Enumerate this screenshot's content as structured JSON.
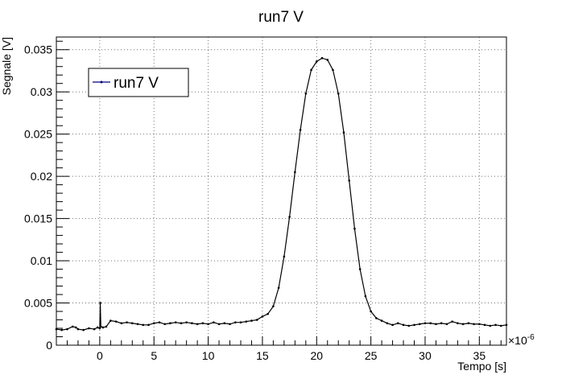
{
  "chart_data": {
    "type": "line",
    "title": "run7 V",
    "xlabel": "Tempo [s]",
    "ylabel": "Segnale [V]",
    "x_exponent_label": "×10",
    "x_exponent_power": "-6",
    "xlim": [
      -4.0,
      37.5
    ],
    "ylim": [
      0,
      0.0365
    ],
    "x_ticks": [
      {
        "value": 0,
        "label": "0"
      },
      {
        "value": 5,
        "label": "5"
      },
      {
        "value": 10,
        "label": "10"
      },
      {
        "value": 15,
        "label": "15"
      },
      {
        "value": 20,
        "label": "20"
      },
      {
        "value": 25,
        "label": "25"
      },
      {
        "value": 30,
        "label": "30"
      },
      {
        "value": 35,
        "label": "35"
      }
    ],
    "y_ticks": [
      {
        "value": 0,
        "label": "0"
      },
      {
        "value": 0.005,
        "label": "0.005"
      },
      {
        "value": 0.01,
        "label": "0.01"
      },
      {
        "value": 0.015,
        "label": "0.015"
      },
      {
        "value": 0.02,
        "label": "0.02"
      },
      {
        "value": 0.025,
        "label": "0.025"
      },
      {
        "value": 0.03,
        "label": "0.03"
      },
      {
        "value": 0.035,
        "label": "0.035"
      }
    ],
    "grid": true,
    "legend_position": "top-left",
    "series": [
      {
        "name": "run7 V",
        "color": "#000080",
        "x": [
          -4.0,
          -3.5,
          -3.0,
          -2.5,
          -2.2,
          -2.0,
          -1.5,
          -1.0,
          -0.5,
          -0.2,
          0.0,
          0.05,
          0.1,
          0.3,
          0.6,
          1.0,
          1.5,
          2.0,
          2.5,
          3.0,
          3.5,
          4.0,
          4.5,
          5.0,
          5.5,
          6.0,
          6.5,
          7.0,
          7.5,
          8.0,
          8.5,
          9.0,
          9.5,
          10.0,
          10.5,
          11.0,
          11.5,
          12.0,
          12.5,
          13.0,
          13.5,
          14.0,
          14.5,
          15.0,
          15.5,
          16.0,
          16.5,
          17.0,
          17.5,
          18.0,
          18.5,
          19.0,
          19.5,
          20.0,
          20.5,
          21.0,
          21.5,
          22.0,
          22.5,
          23.0,
          23.5,
          24.0,
          24.5,
          25.0,
          25.5,
          26.0,
          26.5,
          27.0,
          27.5,
          28.0,
          28.5,
          29.0,
          29.5,
          30.0,
          30.5,
          31.0,
          31.5,
          32.0,
          32.5,
          33.0,
          33.5,
          34.0,
          34.5,
          35.0,
          35.5,
          36.0,
          36.5,
          37.0,
          37.5
        ],
        "y": [
          0.0019,
          0.0018,
          0.0019,
          0.0022,
          0.0021,
          0.0019,
          0.0018,
          0.002,
          0.0019,
          0.0021,
          0.002,
          0.005,
          0.0022,
          0.0021,
          0.0022,
          0.0029,
          0.0028,
          0.0026,
          0.0027,
          0.0026,
          0.0025,
          0.0024,
          0.0024,
          0.0026,
          0.0027,
          0.0025,
          0.0026,
          0.0027,
          0.0026,
          0.0027,
          0.0026,
          0.0025,
          0.0026,
          0.0025,
          0.0027,
          0.0025,
          0.0026,
          0.0025,
          0.0027,
          0.0027,
          0.0028,
          0.0029,
          0.003,
          0.0034,
          0.0037,
          0.0046,
          0.0068,
          0.0105,
          0.0152,
          0.0205,
          0.0255,
          0.0298,
          0.0326,
          0.0336,
          0.034,
          0.0338,
          0.0326,
          0.0298,
          0.0252,
          0.0195,
          0.0138,
          0.009,
          0.0058,
          0.004,
          0.0032,
          0.0029,
          0.0026,
          0.0024,
          0.0026,
          0.0024,
          0.0023,
          0.0024,
          0.0025,
          0.0026,
          0.0026,
          0.0025,
          0.0026,
          0.0025,
          0.0028,
          0.0026,
          0.0025,
          0.0026,
          0.0025,
          0.0025,
          0.0024,
          0.0023,
          0.0024,
          0.0023,
          0.0024
        ]
      }
    ]
  }
}
